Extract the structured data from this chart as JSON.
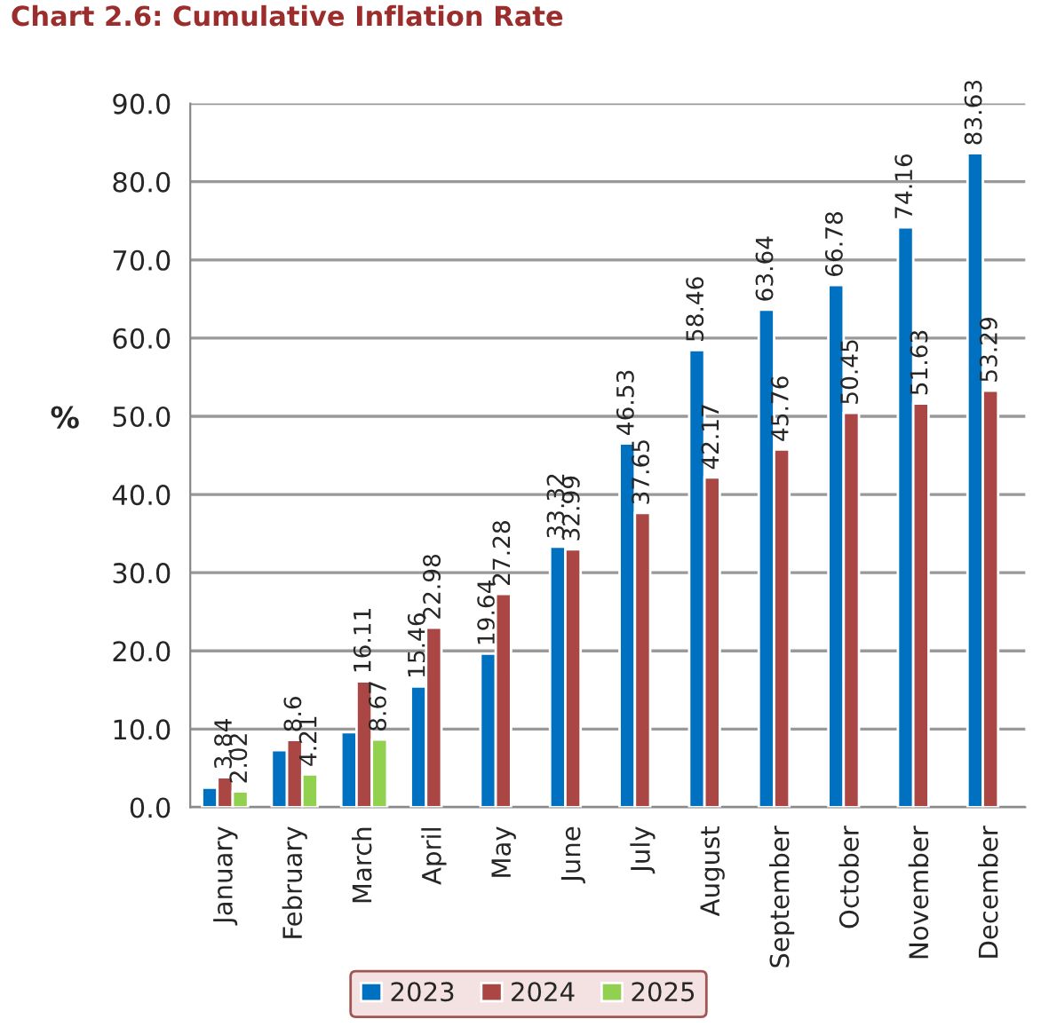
{
  "chart_data": {
    "type": "bar",
    "title": "Chart 2.6: Cumulative Inflation Rate",
    "ylabel": "%",
    "categories": [
      "January",
      "February",
      "March",
      "April",
      "May",
      "June",
      "July",
      "August",
      "September",
      "October",
      "November",
      "December"
    ],
    "series": [
      {
        "name": "2023",
        "color": "#0070c0",
        "values": [
          2.5,
          7.3,
          9.6,
          15.46,
          19.64,
          33.32,
          46.53,
          58.46,
          63.64,
          66.78,
          74.16,
          83.63
        ],
        "value_labels": [
          null,
          null,
          null,
          "15.46",
          "19.64",
          "33.32",
          "46.53",
          "58.46",
          "63.64",
          "66.78",
          "74.16",
          "83.63"
        ]
      },
      {
        "name": "2024",
        "color": "#aa4644",
        "values": [
          3.84,
          8.6,
          16.11,
          22.98,
          27.28,
          32.99,
          37.65,
          42.17,
          45.76,
          50.45,
          51.63,
          53.29
        ],
        "value_labels": [
          "3.84",
          "8.6",
          "16.11",
          "22.98",
          "27.28",
          "32.99",
          "37.65",
          "42.17",
          "45.76",
          "50.45",
          "51.63",
          "53.29"
        ]
      },
      {
        "name": "2025",
        "color": "#92d050",
        "values": [
          2.02,
          4.21,
          8.67,
          null,
          null,
          null,
          null,
          null,
          null,
          null,
          null,
          null
        ],
        "value_labels": [
          "2.02",
          "4.21",
          "8.67",
          null,
          null,
          null,
          null,
          null,
          null,
          null,
          null,
          null
        ]
      }
    ],
    "ylim": [
      0,
      90
    ],
    "yticks": [
      {
        "value": 0,
        "label": "0.0"
      },
      {
        "value": 10,
        "label": "10.0"
      },
      {
        "value": 20,
        "label": "20.0"
      },
      {
        "value": 30,
        "label": "30.0"
      },
      {
        "value": 40,
        "label": "40.0"
      },
      {
        "value": 50,
        "label": "50.0"
      },
      {
        "value": 60,
        "label": "60.0"
      },
      {
        "value": 70,
        "label": "70.0"
      },
      {
        "value": 80,
        "label": "80.0"
      },
      {
        "value": 90,
        "label": "90.0"
      }
    ],
    "grid": "y",
    "legend": "bottom"
  }
}
